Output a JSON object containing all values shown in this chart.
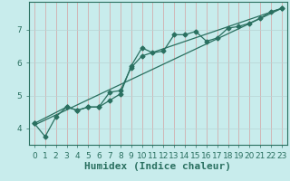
{
  "title": "",
  "xlabel": "Humidex (Indice chaleur)",
  "bg_color": "#c8ecec",
  "grid_color_v": "#d4a0a0",
  "grid_color_h": "#b8d4d4",
  "line_color": "#2a7060",
  "spine_color": "#2a7060",
  "xlim": [
    -0.5,
    23.5
  ],
  "ylim": [
    3.5,
    7.85
  ],
  "xticks": [
    0,
    1,
    2,
    3,
    4,
    5,
    6,
    7,
    8,
    9,
    10,
    11,
    12,
    13,
    14,
    15,
    16,
    17,
    18,
    19,
    20,
    21,
    22,
    23
  ],
  "yticks": [
    4,
    5,
    6,
    7
  ],
  "line1_x": [
    0,
    1,
    2,
    3,
    4,
    5,
    6,
    7,
    8,
    9,
    10,
    11,
    12,
    13,
    14,
    15,
    16,
    17,
    18,
    19,
    20,
    21,
    22,
    23
  ],
  "line1_y": [
    4.15,
    3.75,
    4.35,
    4.65,
    4.55,
    4.65,
    4.65,
    4.85,
    5.05,
    5.9,
    6.45,
    6.3,
    6.35,
    6.85,
    6.85,
    6.95,
    6.65,
    6.75,
    7.05,
    7.1,
    7.2,
    7.35,
    7.55,
    7.65
  ],
  "line2_x": [
    0,
    3,
    4,
    5,
    6,
    7,
    8,
    9,
    10,
    23
  ],
  "line2_y": [
    4.15,
    4.65,
    4.55,
    4.65,
    4.65,
    5.1,
    5.15,
    5.85,
    6.2,
    7.65
  ],
  "line3_x": [
    0,
    23
  ],
  "line3_y": [
    4.1,
    7.65
  ],
  "marker": "D",
  "marker_size": 2.5,
  "linewidth": 0.9,
  "xlabel_fontsize": 8,
  "tick_fontsize": 6.5
}
